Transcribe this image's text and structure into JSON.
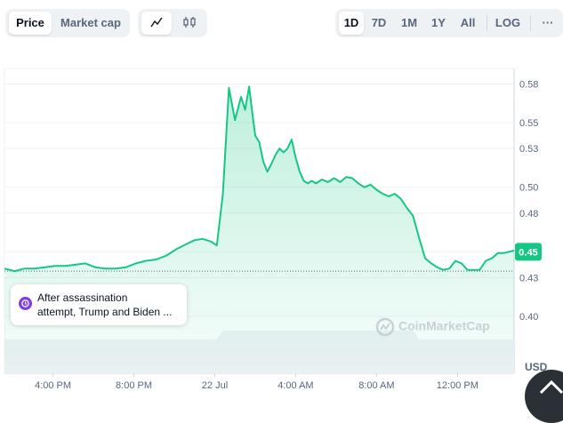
{
  "toggle": {
    "price": "Price",
    "market_cap": "Market cap"
  },
  "chart_type_icons": [
    "line-chart-icon",
    "candlestick-icon"
  ],
  "ranges": [
    "1D",
    "7D",
    "1M",
    "1Y",
    "All"
  ],
  "active_range": "1D",
  "scale": "LOG",
  "more": "···",
  "tooltip": {
    "line1": "After assassination",
    "line2": "attempt, Trump and Biden ..."
  },
  "watermark": "CoinMarketCap",
  "currency": "USD",
  "colors": {
    "line": "#16c784",
    "fill": "#16c784",
    "badge": "#16c784",
    "accent_purple": "#7b3fe4"
  },
  "chart_data": {
    "type": "area",
    "title": "",
    "xlabel": "",
    "ylabel": "",
    "x_ticks": [
      "4:00 PM",
      "8:00 PM",
      "22 Jul",
      "4:00 AM",
      "8:00 AM",
      "12:00 PM"
    ],
    "x_tick_hours": [
      16,
      20,
      24,
      28,
      32,
      36
    ],
    "xlim_hours": [
      13.6,
      38.8
    ],
    "y_ticks": [
      "0.58",
      "0.55",
      "0.53",
      "0.50",
      "0.48",
      "0.45",
      "0.43",
      "0.40"
    ],
    "y_tick_values": [
      0.58,
      0.55,
      0.53,
      0.5,
      0.48,
      0.45,
      0.43,
      0.4
    ],
    "ylim": [
      0.38,
      0.59
    ],
    "current_price": 0.45,
    "current_price_label": "0.45",
    "reference_price": 0.435,
    "grid": true,
    "x_hours": [
      13.6,
      14.1,
      14.6,
      15.1,
      15.6,
      16.1,
      16.6,
      17.1,
      17.6,
      18.1,
      18.6,
      19.1,
      19.6,
      20.1,
      20.6,
      21.1,
      21.6,
      22.1,
      22.6,
      23.0,
      23.4,
      23.8,
      24.1,
      24.4,
      24.7,
      25.0,
      25.3,
      25.5,
      25.7,
      25.9,
      26.0,
      26.2,
      26.4,
      26.6,
      26.8,
      27.0,
      27.2,
      27.4,
      27.6,
      27.8,
      28.0,
      28.2,
      28.4,
      28.6,
      28.8,
      29.0,
      29.3,
      29.6,
      29.9,
      30.2,
      30.5,
      30.8,
      31.1,
      31.4,
      31.7,
      32.0,
      32.3,
      32.6,
      32.9,
      33.2,
      33.5,
      33.8,
      34.1,
      34.4,
      34.7,
      35.0,
      35.3,
      35.6,
      35.9,
      36.2,
      36.5,
      36.8,
      37.1,
      37.4,
      37.7,
      38.0,
      38.3,
      38.8
    ],
    "values": [
      0.437,
      0.435,
      0.437,
      0.437,
      0.438,
      0.439,
      0.439,
      0.44,
      0.441,
      0.438,
      0.437,
      0.437,
      0.438,
      0.441,
      0.443,
      0.444,
      0.447,
      0.452,
      0.456,
      0.459,
      0.46,
      0.458,
      0.455,
      0.495,
      0.577,
      0.552,
      0.57,
      0.56,
      0.578,
      0.552,
      0.54,
      0.535,
      0.52,
      0.512,
      0.518,
      0.525,
      0.53,
      0.527,
      0.53,
      0.537,
      0.523,
      0.512,
      0.505,
      0.503,
      0.505,
      0.503,
      0.506,
      0.504,
      0.507,
      0.504,
      0.508,
      0.507,
      0.503,
      0.5,
      0.502,
      0.498,
      0.495,
      0.493,
      0.495,
      0.491,
      0.484,
      0.478,
      0.461,
      0.445,
      0.441,
      0.438,
      0.436,
      0.437,
      0.443,
      0.441,
      0.436,
      0.436,
      0.436,
      0.443,
      0.445,
      0.449,
      0.449,
      0.451
    ]
  }
}
